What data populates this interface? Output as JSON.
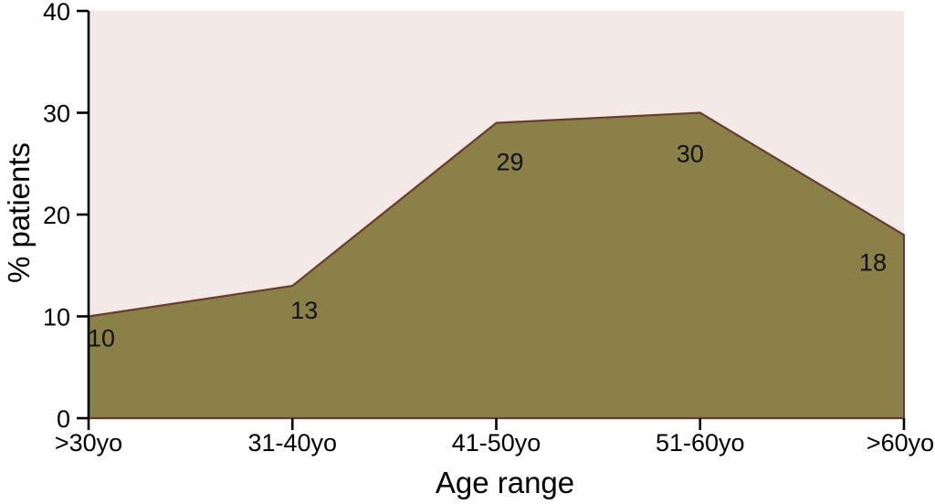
{
  "chart_data": {
    "type": "area",
    "categories": [
      ">30yo",
      "31-40yo",
      "41-50yo",
      "51-60yo",
      ">60yo"
    ],
    "values": [
      10,
      13,
      29,
      30,
      18
    ],
    "data_labels": [
      "10",
      "13",
      "29",
      "30",
      "18"
    ],
    "title": "",
    "xlabel": "Age range",
    "ylabel": "% patients",
    "ylim": [
      0,
      40
    ],
    "yticks": [
      0,
      10,
      20,
      30,
      40
    ],
    "grid": false,
    "legend": "none",
    "colors": {
      "area_fill": "#8a8048",
      "line": "#693c32",
      "plot_background": "#f3e9e6",
      "axis": "#000000",
      "text": "#000000"
    }
  }
}
